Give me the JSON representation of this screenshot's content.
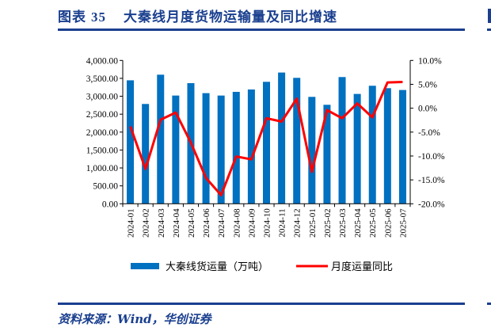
{
  "figure": {
    "label": "图表",
    "number": "35",
    "title": "大秦线月度货物运输量及同比增速",
    "source": "资料来源：Wind，华创证券"
  },
  "colors": {
    "title_blue": "#1a3f8f",
    "bar": "#0070c0",
    "line": "#ff0000",
    "axis": "#000000"
  },
  "legend": {
    "bar_label": "大秦线货运量（万吨）",
    "line_label": "月度运量同比"
  },
  "chart_data": {
    "type": "bar+line",
    "title": "大秦线月度货物运输量及同比增速",
    "categories": [
      "2024-01",
      "2024-02",
      "2024-03",
      "2024-04",
      "2024-05",
      "2024-06",
      "2024-07",
      "2024-08",
      "2024-09",
      "2024-10",
      "2024-11",
      "2024-12",
      "2025-01",
      "2025-02",
      "2025-03",
      "2025-04",
      "2025-05",
      "2025-06",
      "2025-07"
    ],
    "series": [
      {
        "name": "大秦线货运量（万吨）",
        "type": "bar",
        "axis": "left",
        "values": [
          3445,
          2785,
          3602,
          3020,
          3366,
          3087,
          3020,
          3123,
          3189,
          3403,
          3662,
          3514,
          2983,
          2762,
          3536,
          3065,
          3293,
          3226,
          3175
        ]
      },
      {
        "name": "月度运量同比",
        "type": "line",
        "axis": "right",
        "unit": "%",
        "values": [
          -3.8,
          -12.7,
          -2.4,
          -0.9,
          -7.2,
          -14.6,
          -18.2,
          -10.1,
          -10.7,
          -2.1,
          -2.8,
          2.0,
          -13.3,
          -0.4,
          -2.1,
          1.0,
          -1.9,
          5.4,
          5.5
        ]
      }
    ],
    "left_axis": {
      "min": 0,
      "max": 4000,
      "step": 500,
      "tick_labels": [
        "0.00",
        "500.00",
        "1,000.00",
        "1,500.00",
        "2,000.00",
        "2,500.00",
        "3,000.00",
        "3,500.00",
        "4,000.00"
      ]
    },
    "right_axis": {
      "min": -20,
      "max": 10,
      "step": 5,
      "tick_labels": [
        "-20.0%",
        "-15.0%",
        "-10.0%",
        "-5.0%",
        "0.0%",
        "5.0%",
        "10.0%"
      ]
    },
    "xlabel": "",
    "ylabel_left": "",
    "ylabel_right": "",
    "grid": false,
    "legend_position": "bottom"
  }
}
